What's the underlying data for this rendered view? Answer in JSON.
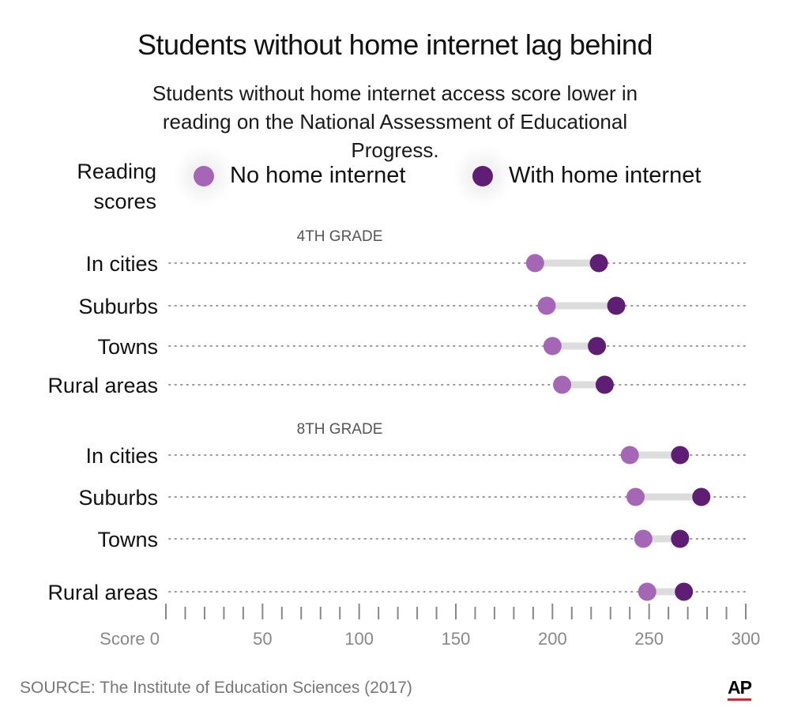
{
  "title": "Students without home internet lag behind",
  "subtitle": "Students without home internet access score lower in reading on the National Assessment of Educational Progress.",
  "legend": {
    "label": "Reading scores",
    "items": [
      "No home internet",
      "With home internet"
    ]
  },
  "colors": {
    "no_internet": "#a567b5",
    "with_internet": "#5e1e73",
    "connector": "#dcdcdc",
    "dotted_line": "#9a9a9a",
    "axis": "#888888",
    "ap_red": "#e8202a"
  },
  "chart_data": {
    "type": "dumbbell",
    "x_axis": {
      "range": [
        0,
        300
      ],
      "ticks": [
        0,
        50,
        100,
        150,
        200,
        250,
        300
      ],
      "tick_labels": [
        "Score 0",
        "50",
        "100",
        "150",
        "200",
        "250",
        "300"
      ],
      "minor_tick_step": 10
    },
    "series": [
      {
        "name": "No home internet"
      },
      {
        "name": "With home internet"
      }
    ],
    "groups": [
      {
        "label": "4TH GRADE",
        "rows": [
          {
            "category": "In cities",
            "no_internet": 191,
            "with_internet": 224
          },
          {
            "category": "Suburbs",
            "no_internet": 197,
            "with_internet": 233
          },
          {
            "category": "Towns",
            "no_internet": 200,
            "with_internet": 223
          },
          {
            "category": "Rural areas",
            "no_internet": 205,
            "with_internet": 227
          }
        ]
      },
      {
        "label": "8TH GRADE",
        "rows": [
          {
            "category": "In cities",
            "no_internet": 240,
            "with_internet": 266
          },
          {
            "category": "Suburbs",
            "no_internet": 243,
            "with_internet": 277
          },
          {
            "category": "Towns",
            "no_internet": 247,
            "with_internet": 266
          },
          {
            "category": "Rural areas",
            "no_internet": 249,
            "with_internet": 268
          }
        ]
      }
    ]
  },
  "source": "SOURCE: The Institute of Education Sciences (2017)",
  "logo": "AP"
}
